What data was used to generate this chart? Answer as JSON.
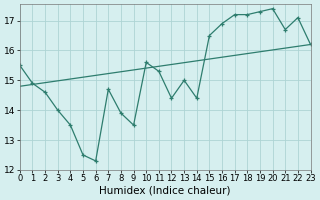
{
  "xlabel": "Humidex (Indice chaleur)",
  "line1_x": [
    0,
    1,
    2,
    3,
    4,
    5,
    6,
    7,
    8,
    9,
    10,
    11,
    12,
    13,
    14,
    15,
    16,
    17,
    18,
    19,
    20,
    21,
    22,
    23
  ],
  "line1_y": [
    15.5,
    14.9,
    14.6,
    14.0,
    13.5,
    12.5,
    12.3,
    14.7,
    13.9,
    13.5,
    15.6,
    15.3,
    14.4,
    15.0,
    14.4,
    16.5,
    16.9,
    17.2,
    17.2,
    17.3,
    17.4,
    16.7,
    17.1,
    16.2
  ],
  "line2_x": [
    0,
    23
  ],
  "line2_y": [
    14.8,
    16.2
  ],
  "color": "#2e7d6e",
  "bg_color": "#d6efef",
  "grid_color": "#aed4d4",
  "xlim": [
    0,
    23
  ],
  "ylim": [
    12,
    17.55
  ],
  "yticks": [
    12,
    13,
    14,
    15,
    16,
    17
  ],
  "xticks": [
    0,
    1,
    2,
    3,
    4,
    5,
    6,
    7,
    8,
    9,
    10,
    11,
    12,
    13,
    14,
    15,
    16,
    17,
    18,
    19,
    20,
    21,
    22,
    23
  ],
  "marker": "+",
  "tick_fontsize": 6.5,
  "xlabel_fontsize": 7.5
}
